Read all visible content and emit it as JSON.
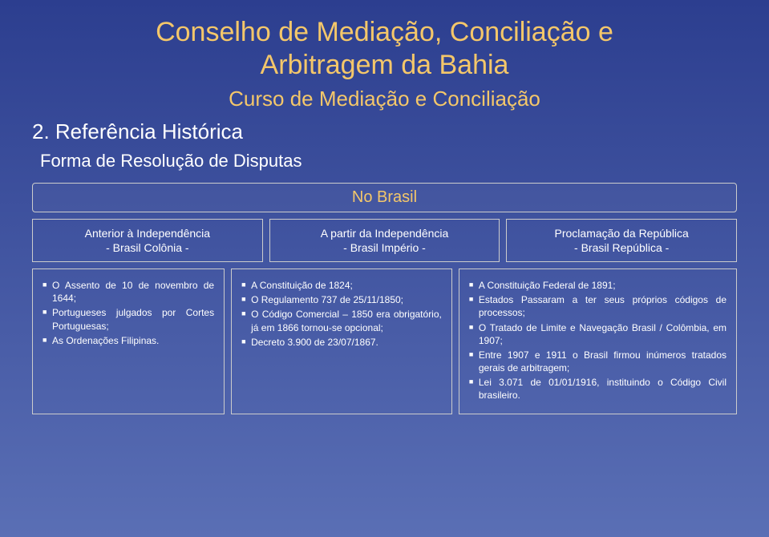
{
  "title_line1": "Conselho de Mediação, Conciliação e",
  "title_line2": "Arbitragem da Bahia",
  "subtitle": "Curso de Mediação e Conciliação",
  "section": "2. Referência Histórica",
  "subsection": "Forma de Resolução de Disputas",
  "table": {
    "superheader": "No Brasil",
    "cols": [
      {
        "l1": "Anterior à Independência",
        "l2": "- Brasil Colônia -"
      },
      {
        "l1": "A partir da Independência",
        "l2": "- Brasil Império -"
      },
      {
        "l1": "Proclamação da República",
        "l2": "- Brasil República -"
      }
    ],
    "cells": [
      [
        "O Assento de 10 de novembro de 1644;",
        "Portugueses julgados por Cortes Portuguesas;",
        "As Ordenações Filipinas."
      ],
      [
        "A Constituição de 1824;",
        "O Regulamento 737 de 25/11/1850;",
        "O Código Comercial – 1850 era obrigatório, já em 1866 tornou-se opcional;",
        "Decreto 3.900 de 23/07/1867."
      ],
      [
        "A Constituição Federal de 1891;",
        "Estados Passaram a ter seus próprios códigos de processos;",
        "O Tratado de Limite e Navegação Brasil / Colômbia, em 1907;",
        "Entre 1907 e 1911 o Brasil firmou inúmeros tratados gerais de arbitragem;",
        "Lei 3.071 de 01/01/1916, instituindo o Código Civil brasileiro."
      ]
    ]
  }
}
